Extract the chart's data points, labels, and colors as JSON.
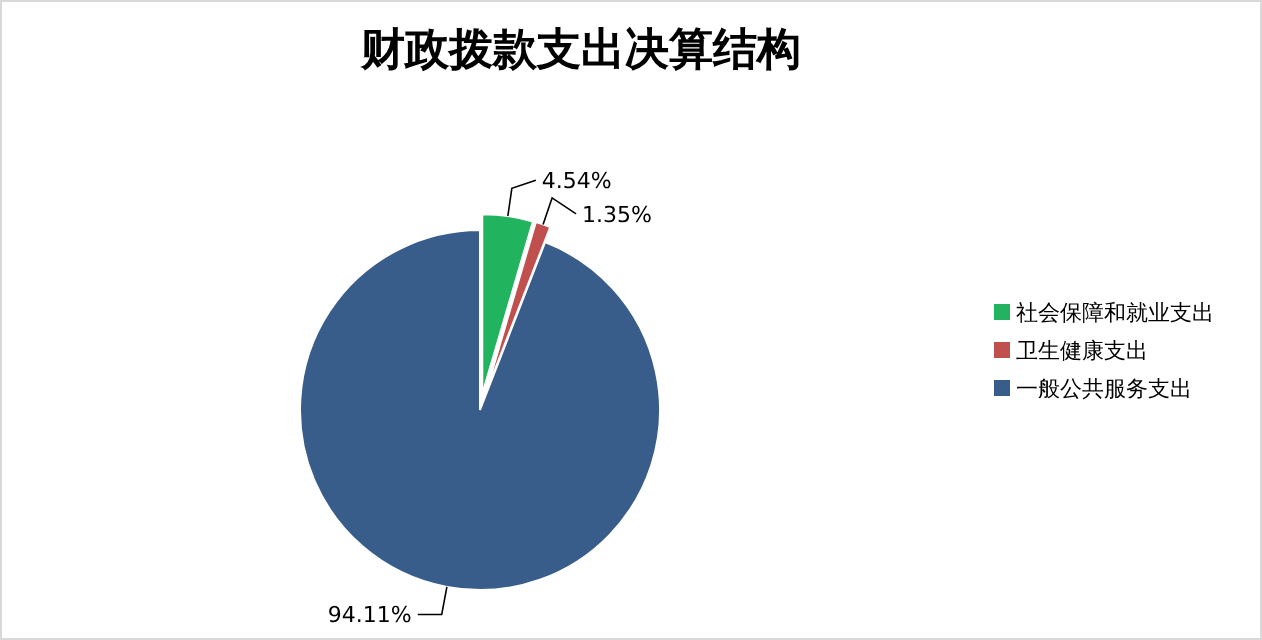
{
  "chart_data": {
    "type": "pie",
    "title": "财政拨款支出决算结构",
    "categories": [
      "社会保障和就业支出",
      "卫生健康支出",
      "一般公共服务支出"
    ],
    "values": [
      4.54,
      1.35,
      94.11
    ],
    "colors": [
      "#22b35e",
      "#c0504d",
      "#385d8a"
    ],
    "value_labels": [
      "4.54%",
      "1.35%",
      "94.11%"
    ],
    "legend": "right"
  }
}
